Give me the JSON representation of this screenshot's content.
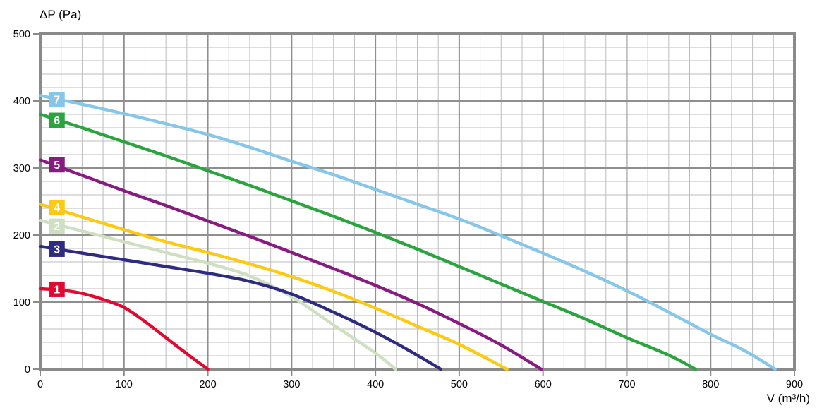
{
  "chart_data": {
    "type": "line",
    "title": "",
    "ylabel": "ΔP (Pa)",
    "xlabel": "V (m³/h)",
    "xlim": [
      0,
      900
    ],
    "ylim": [
      0,
      500
    ],
    "x_ticks": [
      0,
      100,
      200,
      300,
      400,
      500,
      600,
      700,
      800,
      900
    ],
    "y_ticks": [
      0,
      100,
      200,
      300,
      400,
      500
    ],
    "x_minor_step": 25,
    "y_minor_step": 20,
    "grid": true,
    "legend_position": "numbered labels on curves near y-axis",
    "draw_order": [
      "2",
      "1",
      "3",
      "4",
      "5",
      "6",
      "7"
    ],
    "series": [
      {
        "name": "1",
        "color": "#e2082f",
        "label_p": 119,
        "points": [
          [
            0,
            120
          ],
          [
            25,
            118
          ],
          [
            50,
            113
          ],
          [
            75,
            104
          ],
          [
            100,
            92
          ],
          [
            125,
            71
          ],
          [
            150,
            47
          ],
          [
            175,
            23
          ],
          [
            200,
            0
          ]
        ]
      },
      {
        "name": "2",
        "color": "#cfdfc2",
        "label_p": 213,
        "points": [
          [
            0,
            222
          ],
          [
            50,
            206
          ],
          [
            100,
            190
          ],
          [
            150,
            174
          ],
          [
            200,
            158
          ],
          [
            250,
            139
          ],
          [
            300,
            108
          ],
          [
            350,
            66
          ],
          [
            400,
            24
          ],
          [
            424,
            0
          ]
        ]
      },
      {
        "name": "3",
        "color": "#2f2b83",
        "label_p": 179,
        "points": [
          [
            0,
            183
          ],
          [
            50,
            173
          ],
          [
            100,
            163
          ],
          [
            150,
            153
          ],
          [
            200,
            143
          ],
          [
            250,
            131
          ],
          [
            300,
            112
          ],
          [
            350,
            85
          ],
          [
            400,
            55
          ],
          [
            440,
            28
          ],
          [
            478,
            0
          ]
        ]
      },
      {
        "name": "4",
        "color": "#fcc913",
        "label_p": 241,
        "points": [
          [
            0,
            246
          ],
          [
            50,
            227
          ],
          [
            100,
            208
          ],
          [
            150,
            190
          ],
          [
            200,
            174
          ],
          [
            250,
            157
          ],
          [
            300,
            138
          ],
          [
            350,
            116
          ],
          [
            400,
            91
          ],
          [
            450,
            64
          ],
          [
            500,
            37
          ],
          [
            557,
            0
          ]
        ]
      },
      {
        "name": "5",
        "color": "#871b80",
        "label_p": 305,
        "points": [
          [
            0,
            312
          ],
          [
            50,
            289
          ],
          [
            100,
            266
          ],
          [
            150,
            244
          ],
          [
            200,
            221
          ],
          [
            250,
            198
          ],
          [
            300,
            174
          ],
          [
            350,
            150
          ],
          [
            400,
            125
          ],
          [
            450,
            98
          ],
          [
            500,
            68
          ],
          [
            550,
            36
          ],
          [
            598,
            0
          ]
        ]
      },
      {
        "name": "6",
        "color": "#2aa43f",
        "label_p": 371,
        "points": [
          [
            0,
            380
          ],
          [
            50,
            360
          ],
          [
            100,
            339
          ],
          [
            150,
            318
          ],
          [
            200,
            296
          ],
          [
            250,
            274
          ],
          [
            300,
            251
          ],
          [
            350,
            228
          ],
          [
            400,
            204
          ],
          [
            450,
            179
          ],
          [
            500,
            153
          ],
          [
            550,
            127
          ],
          [
            600,
            101
          ],
          [
            650,
            75
          ],
          [
            700,
            47
          ],
          [
            750,
            21
          ],
          [
            782,
            0
          ]
        ]
      },
      {
        "name": "7",
        "color": "#86c6e9",
        "label_p": 402,
        "points": [
          [
            0,
            408
          ],
          [
            50,
            395
          ],
          [
            100,
            381
          ],
          [
            150,
            366
          ],
          [
            200,
            350
          ],
          [
            250,
            331
          ],
          [
            300,
            310
          ],
          [
            350,
            290
          ],
          [
            400,
            268
          ],
          [
            450,
            246
          ],
          [
            500,
            224
          ],
          [
            550,
            199
          ],
          [
            600,
            173
          ],
          [
            650,
            146
          ],
          [
            700,
            117
          ],
          [
            750,
            85
          ],
          [
            800,
            52
          ],
          [
            840,
            28
          ],
          [
            877,
            0
          ]
        ]
      }
    ]
  },
  "styles": {
    "frame_color": "#8a8a8a",
    "major_grid_color": "#8f8f8f",
    "minor_grid_color": "#bdbdbd",
    "tick_color": "#8a8a8a",
    "text_color": "#000000",
    "label_text_color": "#ffffff",
    "background": "#ffffff"
  }
}
